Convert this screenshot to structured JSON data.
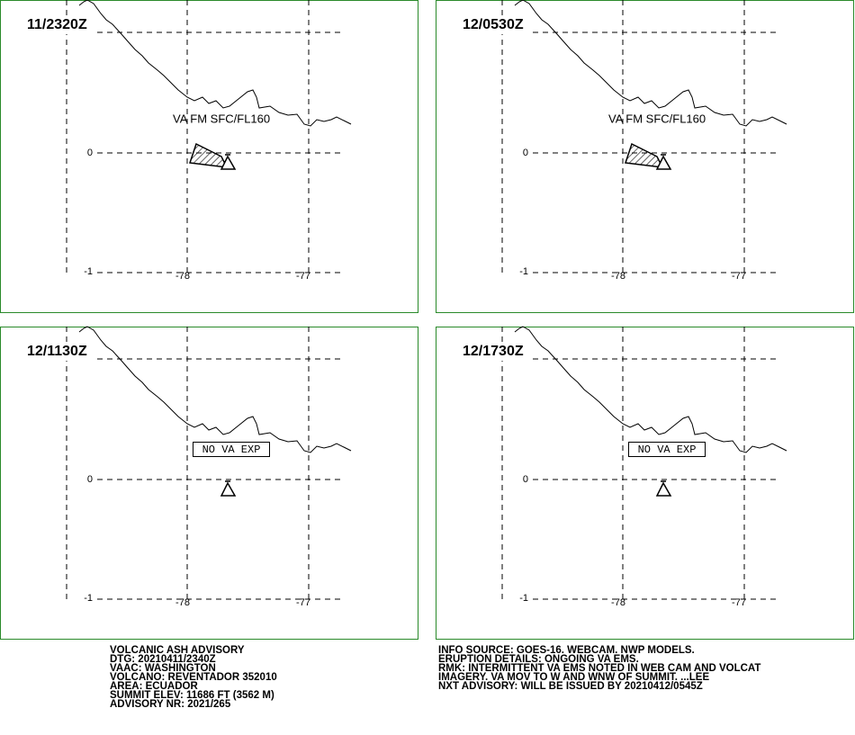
{
  "panels": [
    {
      "time": "11/2320Z",
      "label": "VA FM SFC/FL160",
      "ash_area": true
    },
    {
      "time": "12/0530Z",
      "label": "VA FM SFC/FL160",
      "ash_area": true
    },
    {
      "time": "12/1130Z",
      "label": "NO VA EXP",
      "ash_area": false
    },
    {
      "time": "12/1730Z",
      "label": "NO VA EXP",
      "ash_area": false
    }
  ],
  "grid_labels": {
    "lat": [
      "0",
      "-1"
    ],
    "lon": [
      "-78",
      "-77"
    ]
  },
  "advisory_left": [
    "VOLCANIC ASH ADVISORY",
    "DTG: 20210411/2340Z",
    "VAAC: WASHINGTON",
    "VOLCANO: REVENTADOR 352010",
    "AREA: ECUADOR",
    "SUMMIT ELEV: 11686 FT (3562 M)",
    "ADVISORY NR: 2021/265"
  ],
  "advisory_right": [
    "INFO SOURCE: GOES-16. WEBCAM. NWP MODELS.",
    "ERUPTION DETAILS: ONGOING VA EMS.",
    "RMK: INTERMITTENT VA EMS NOTED IN WEB CAM AND VOLCAT",
    "IMAGERY. VA MOV TO W AND WNW OF SUMMIT. ...LEE",
    "NXT ADVISORY: WILL BE ISSUED BY 20210412/0545Z"
  ]
}
